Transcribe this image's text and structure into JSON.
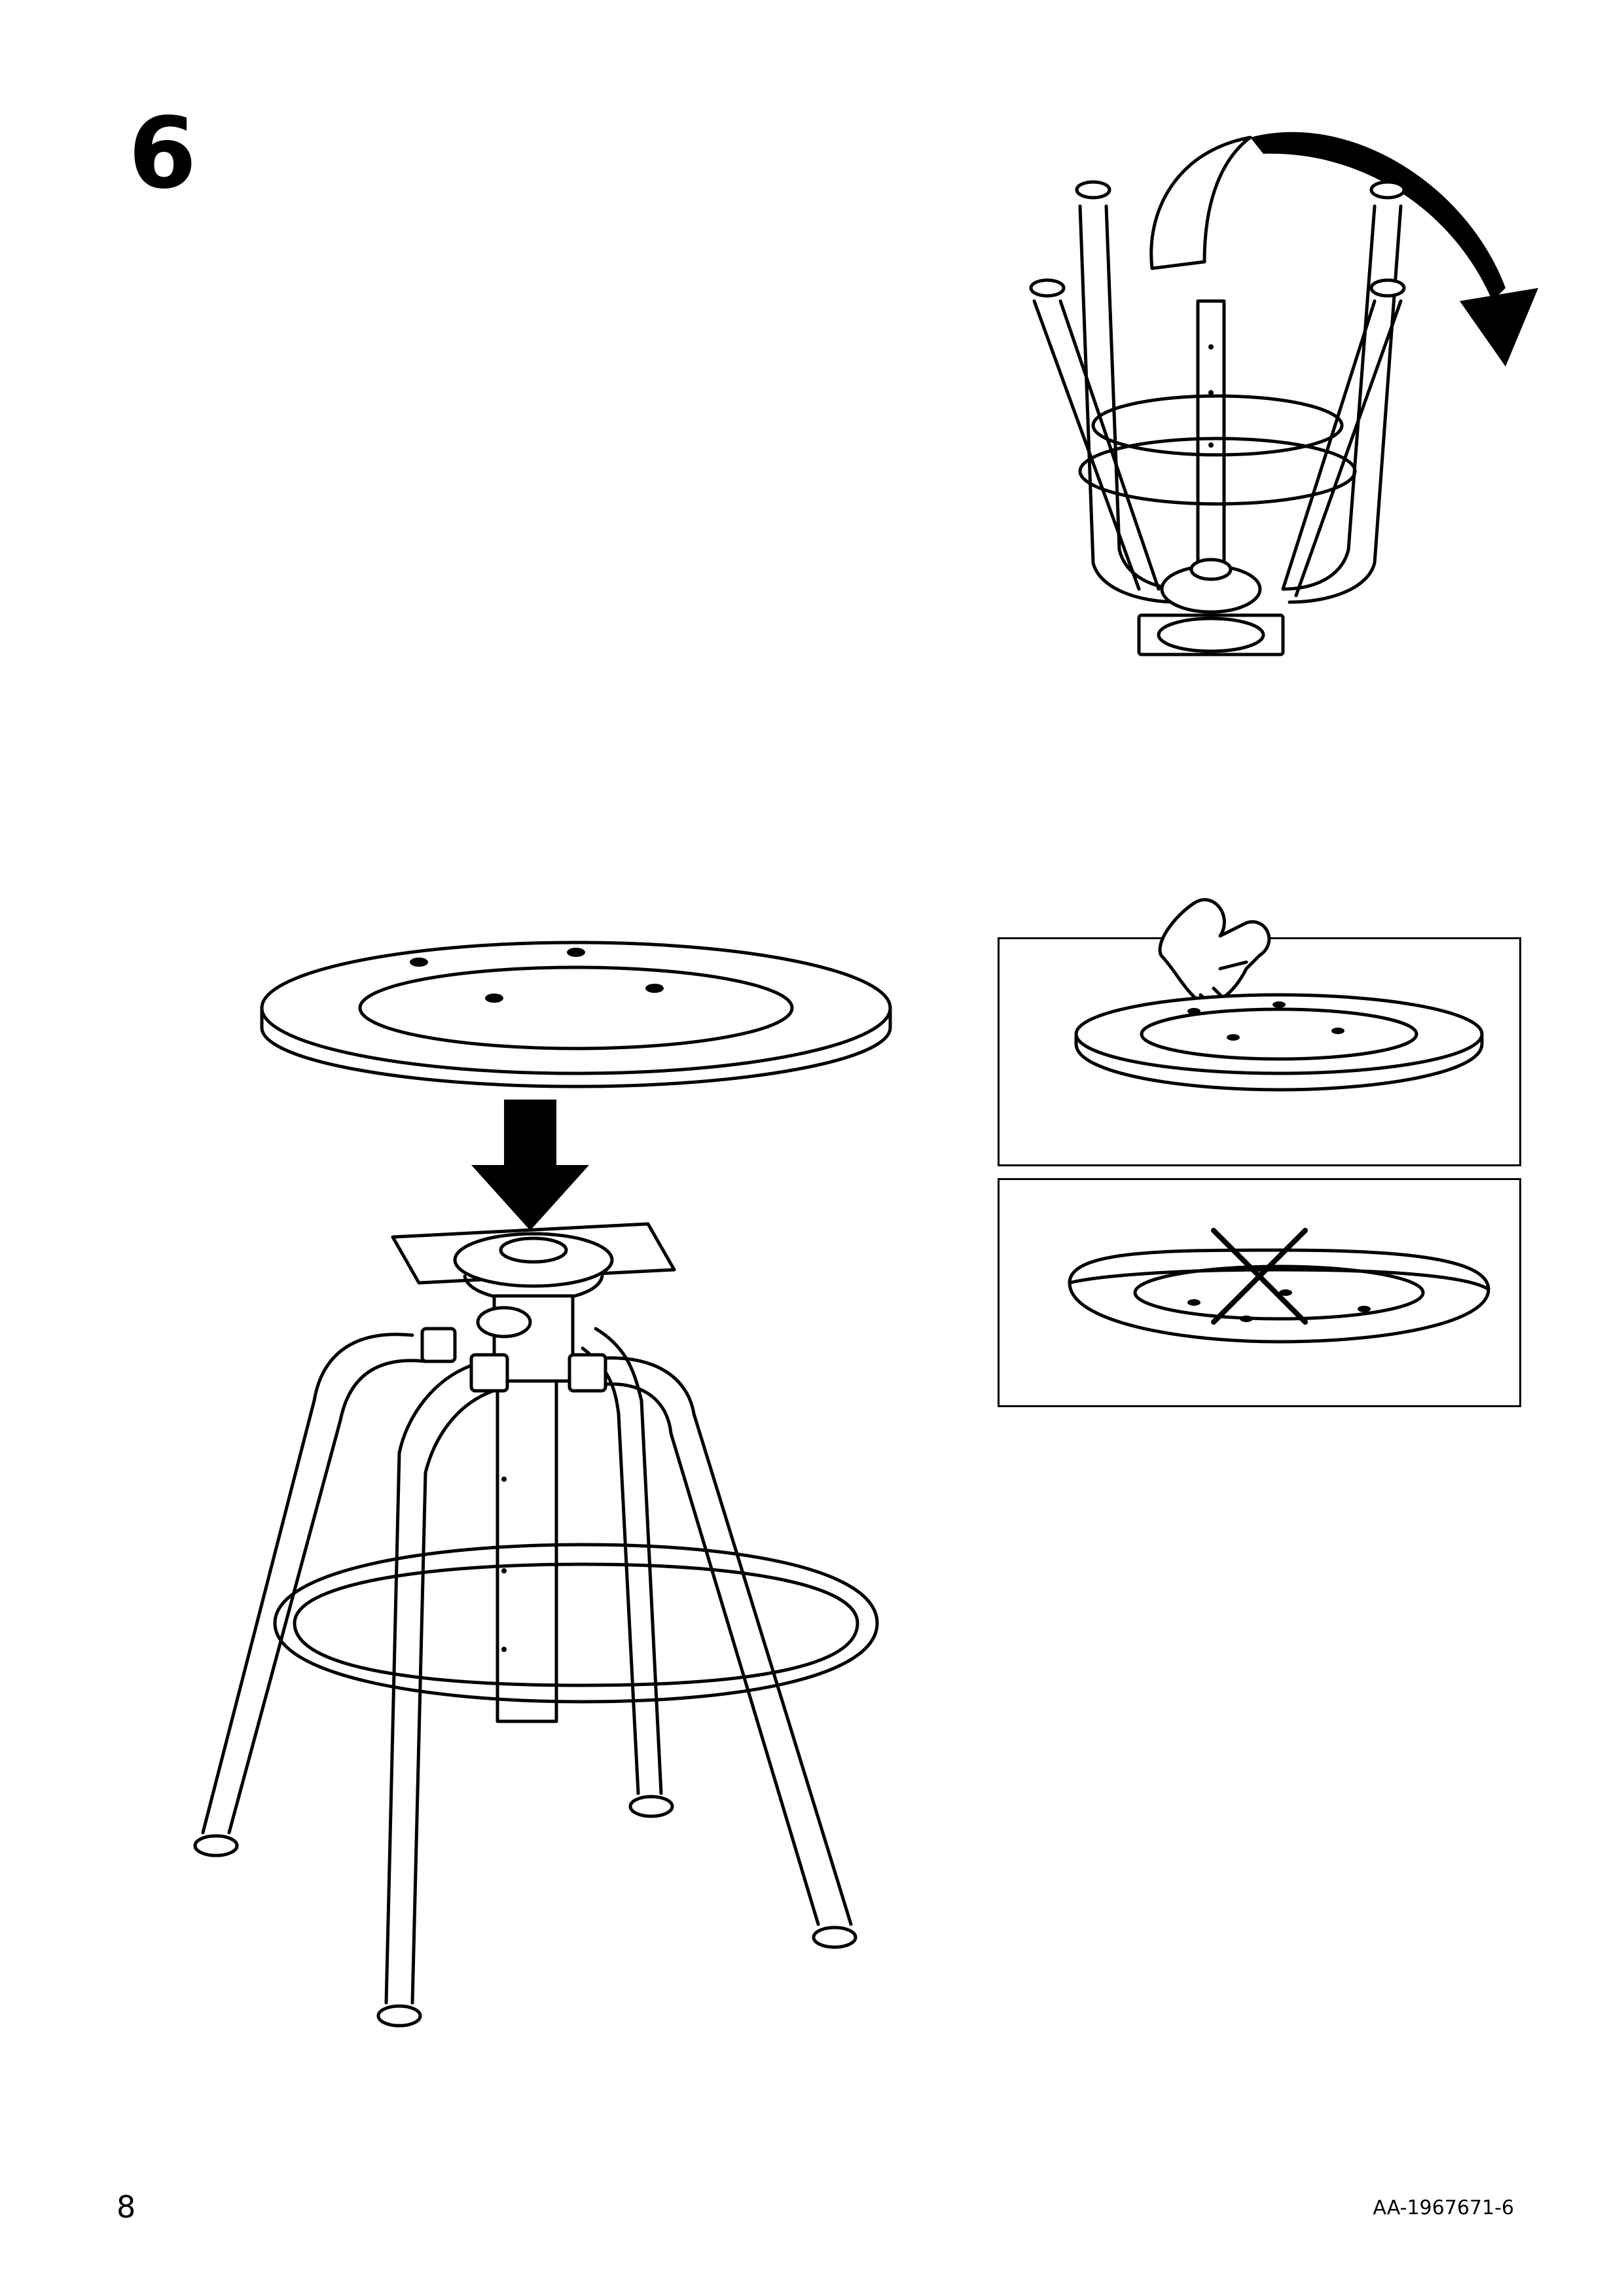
{
  "step": {
    "number": "6"
  },
  "footer": {
    "page_number": "8",
    "document_code": "AA-1967671-6"
  },
  "icons": {
    "flip": "curved-flip-arrow-icon",
    "press": "pointing-hand-icon",
    "wrong": "cross-mark-icon",
    "down": "down-arrow-icon"
  }
}
